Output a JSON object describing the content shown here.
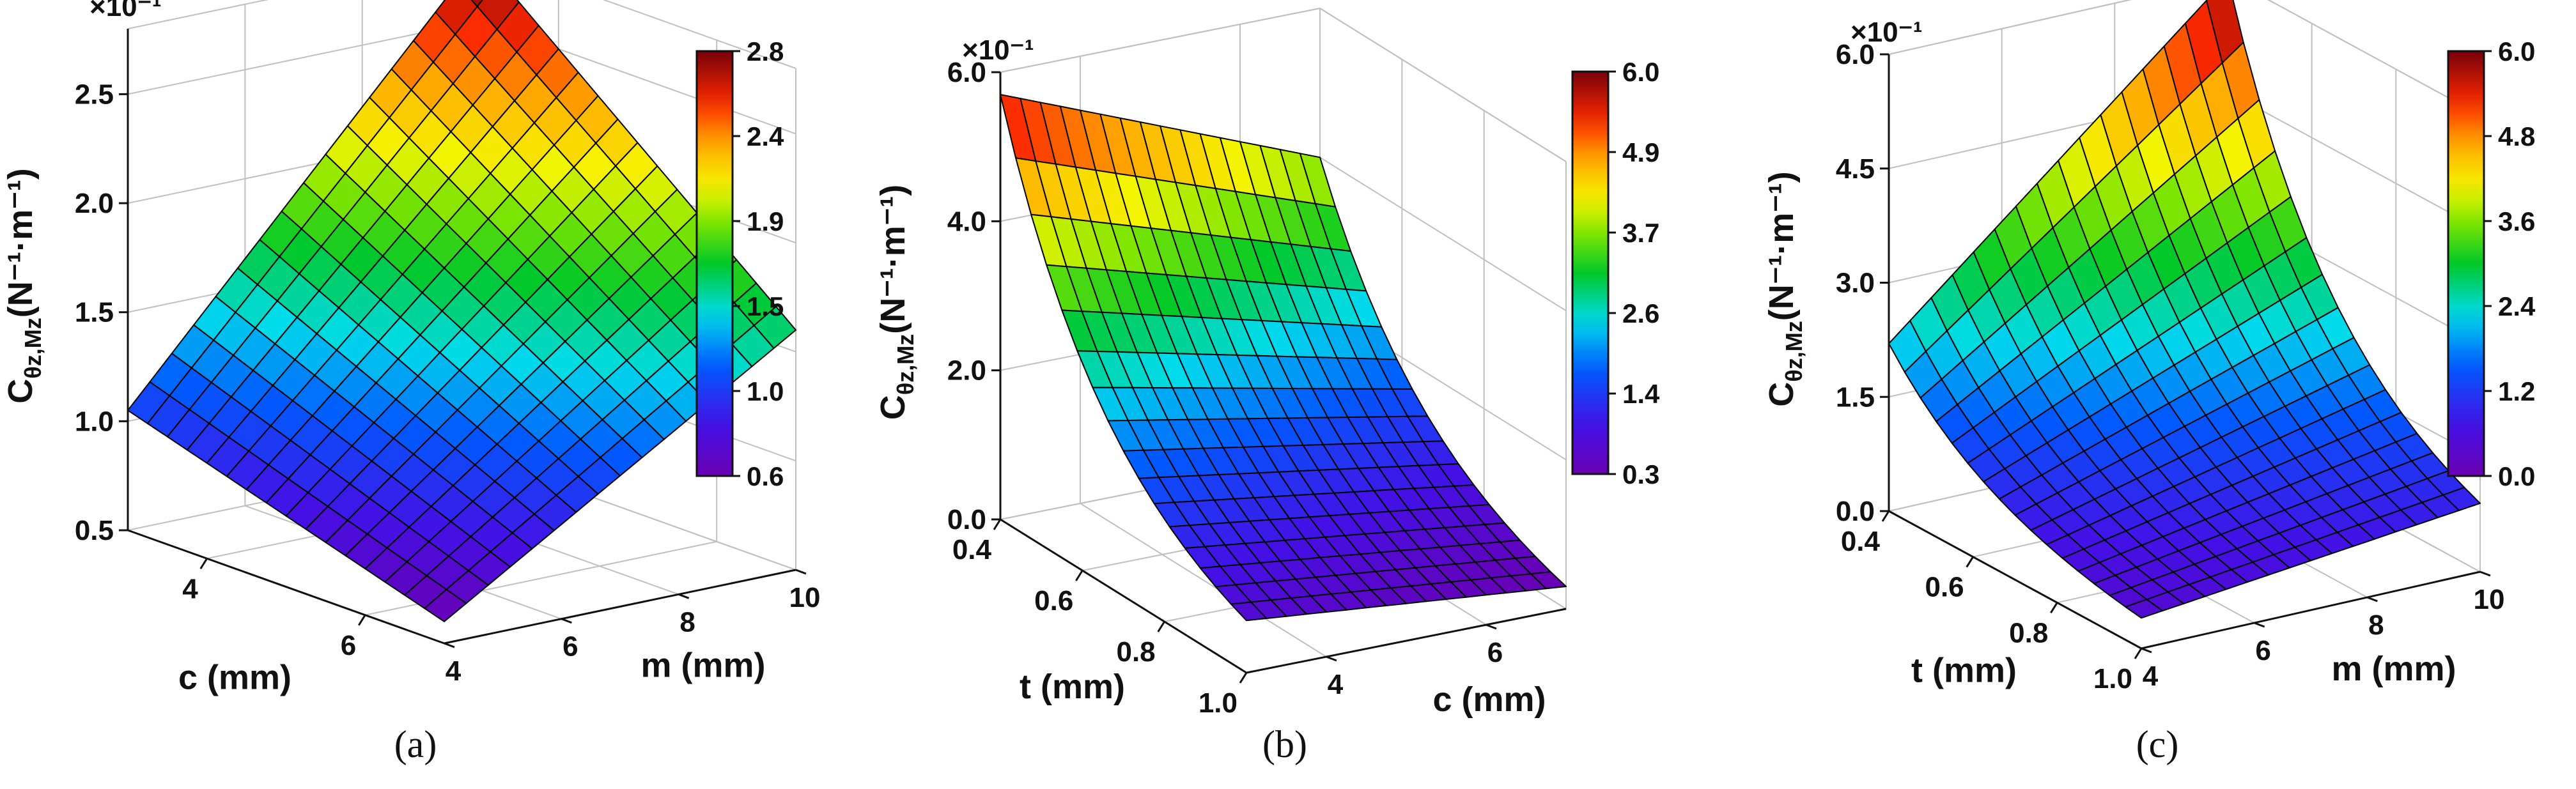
{
  "chart_data": [
    {
      "type": "surface",
      "panel_label": "(a)",
      "exponent_label": "×10⁻¹",
      "z_axis": {
        "label_main": "C",
        "label_sub": "θz,Mz",
        "label_unit": "(N⁻¹·m⁻¹)",
        "range": [
          0.5,
          2.8
        ],
        "ticks": [
          "0.5",
          "1.0",
          "1.5",
          "2.0",
          "2.5"
        ],
        "tick_values": [
          0.5,
          1.0,
          1.5,
          2.0,
          2.5
        ]
      },
      "x_axis": {
        "label": "c (mm)",
        "range": [
          3,
          7
        ],
        "ticks": [
          "4",
          "6"
        ],
        "tick_values": [
          4,
          6
        ]
      },
      "y_axis": {
        "label": "m (mm)",
        "range": [
          4,
          10
        ],
        "ticks": [
          "4",
          "6",
          "8",
          "10"
        ],
        "tick_values": [
          4,
          6,
          8,
          10
        ]
      },
      "surface": {
        "x": [
          3,
          7
        ],
        "y": [
          4,
          10
        ],
        "corners": {
          "x0y0": 1.05,
          "x1y0": 0.6,
          "x0y1": 2.8,
          "x1y1": 1.6
        }
      },
      "colorbar": {
        "range": [
          0.6,
          2.8
        ],
        "ticks": [
          "2.8",
          "2.4",
          "1.9",
          "1.5",
          "1.0",
          "0.6"
        ]
      },
      "grid": true
    },
    {
      "type": "surface",
      "panel_label": "(b)",
      "exponent_label": "×10⁻¹",
      "z_axis": {
        "label_main": "C",
        "label_sub": "θz,Mz",
        "label_unit": "(N⁻¹·m⁻¹)",
        "range": [
          0.0,
          6.0
        ],
        "ticks": [
          "0.0",
          "2.0",
          "4.0",
          "6.0"
        ],
        "tick_values": [
          0.0,
          2.0,
          4.0,
          6.0
        ]
      },
      "x_axis": {
        "label": "t (mm)",
        "range": [
          0.4,
          1.0
        ],
        "ticks": [
          "0.4",
          "0.6",
          "0.8",
          "1.0"
        ],
        "tick_values": [
          0.4,
          0.6,
          0.8,
          1.0
        ]
      },
      "y_axis": {
        "label": "c (mm)",
        "range": [
          3,
          7
        ],
        "ticks": [
          "4",
          "6"
        ],
        "tick_values": [
          4,
          6
        ]
      },
      "surface": {
        "x": [
          0.4,
          1.0
        ],
        "y": [
          3,
          7
        ],
        "corners": {
          "x0y0": 5.7,
          "x1y0": 0.7,
          "x0y1": 4.0,
          "x1y1": 0.3
        }
      },
      "colorbar": {
        "range": [
          0.3,
          6.0
        ],
        "ticks": [
          "6.0",
          "4.9",
          "3.7",
          "2.6",
          "1.4",
          "0.3"
        ]
      },
      "grid": true
    },
    {
      "type": "surface",
      "panel_label": "(c)",
      "exponent_label": "×10⁻¹",
      "z_axis": {
        "label_main": "C",
        "label_sub": "θz,Mz",
        "label_unit": "(N⁻¹·m⁻¹)",
        "range": [
          0.0,
          6.0
        ],
        "ticks": [
          "0.0",
          "1.5",
          "3.0",
          "4.5",
          "6.0"
        ],
        "tick_values": [
          0.0,
          1.5,
          3.0,
          4.5,
          6.0
        ]
      },
      "x_axis": {
        "label": "t (mm)",
        "range": [
          0.4,
          1.0
        ],
        "ticks": [
          "0.4",
          "0.6",
          "0.8",
          "1.0"
        ],
        "tick_values": [
          0.4,
          0.6,
          0.8,
          1.0
        ]
      },
      "y_axis": {
        "label": "m (mm)",
        "range": [
          4,
          10
        ],
        "ticks": [
          "4",
          "6",
          "8",
          "10"
        ],
        "tick_values": [
          4,
          6,
          8,
          10
        ]
      },
      "surface": {
        "x": [
          0.4,
          1.0
        ],
        "y": [
          4,
          10
        ],
        "corners": {
          "x0y0": 2.2,
          "x1y0": 0.4,
          "x0y1": 6.0,
          "x1y1": 0.9
        }
      },
      "colorbar": {
        "range": [
          0.0,
          6.0
        ],
        "ticks": [
          "6.0",
          "4.8",
          "3.6",
          "2.4",
          "1.2",
          "0.0"
        ]
      },
      "grid": true
    }
  ]
}
